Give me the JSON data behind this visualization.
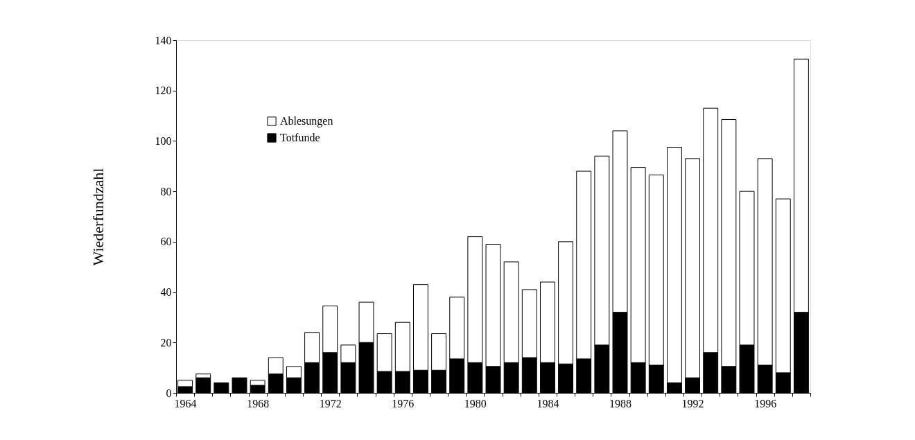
{
  "chart_data": {
    "type": "bar",
    "ylabel": "Wiederfundzahl",
    "stacked": true,
    "legend": "top left",
    "grid": false,
    "categories": [
      "1964",
      null,
      null,
      null,
      "1968",
      null,
      null,
      null,
      "1972",
      null,
      null,
      null,
      "1976",
      null,
      null,
      null,
      "1980",
      null,
      null,
      null,
      "1984",
      null,
      null,
      null,
      "1988",
      null,
      null,
      null,
      "1992",
      null,
      null,
      null,
      "1996",
      null,
      null
    ],
    "ylim": [
      0,
      140
    ],
    "yticks": [
      0,
      20,
      40,
      60,
      80,
      100,
      120,
      140
    ],
    "series": [
      {
        "name": "Totfunde",
        "color": "#000000",
        "values": [
          2.5,
          6,
          4,
          6,
          3,
          7.5,
          6,
          12,
          16,
          12,
          20,
          8.5,
          8.5,
          9,
          9,
          13.5,
          12,
          10.5,
          12,
          14,
          12,
          11.5,
          13.5,
          19,
          32,
          12,
          11,
          4,
          6,
          16,
          10.5,
          19,
          11,
          8,
          32
        ]
      },
      {
        "name": "Ablesungen",
        "color": "#ffffff",
        "values": [
          2.5,
          1.5,
          0,
          0,
          2,
          6.5,
          4.5,
          12,
          18.5,
          7,
          16,
          15,
          19.5,
          34,
          14.5,
          24.5,
          50,
          48.5,
          40,
          27,
          32,
          48.5,
          74.5,
          75,
          72,
          77.5,
          75.5,
          93.5,
          87,
          97,
          98,
          61,
          82,
          69,
          100.5
        ]
      }
    ]
  }
}
